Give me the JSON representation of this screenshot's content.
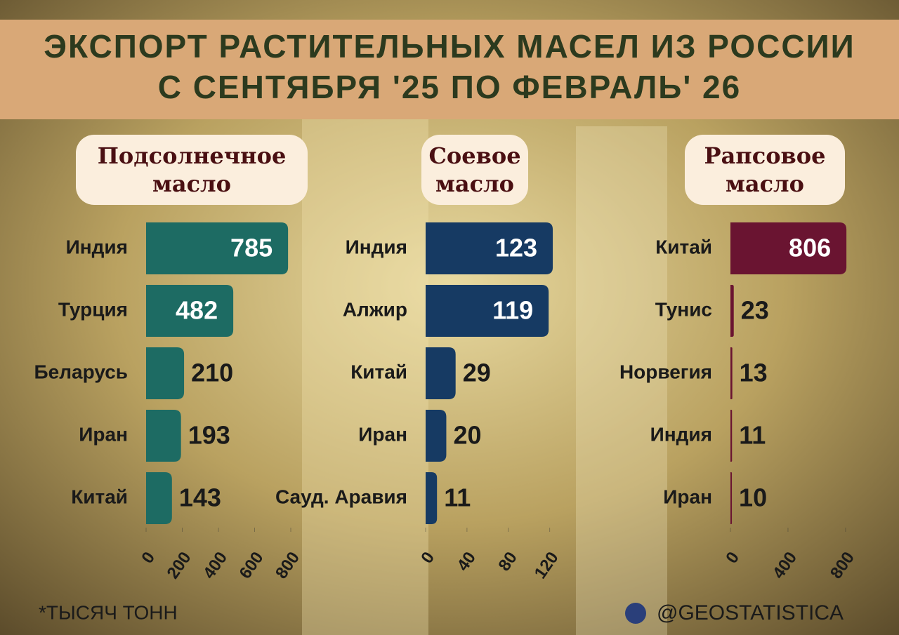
{
  "title": [
    "ЭКСПОРТ РАСТИТЕЛЬНЫХ МАСЕЛ ИЗ РОССИИ",
    "С СЕНТЯБРЯ '25 ПО ФЕВРАЛЬ' 26"
  ],
  "chart_data": [
    {
      "type": "bar",
      "orientation": "horizontal",
      "title": "Подсолнечное масло",
      "categories": [
        "Индия",
        "Турция",
        "Беларусь",
        "Иран",
        "Китай"
      ],
      "values": [
        785,
        482,
        210,
        193,
        143
      ],
      "color": "#1d6b63",
      "xlim": [
        0,
        800
      ],
      "xticks": [
        0,
        200,
        400,
        600,
        800
      ]
    },
    {
      "type": "bar",
      "orientation": "horizontal",
      "title": "Соевое масло",
      "categories": [
        "Индия",
        "Алжир",
        "Китай",
        "Иран",
        "Сауд. Аравия"
      ],
      "values": [
        123,
        119,
        29,
        20,
        11
      ],
      "color": "#163a63",
      "xlim": [
        0,
        125
      ],
      "xticks": [
        0,
        40,
        80,
        120
      ]
    },
    {
      "type": "bar",
      "orientation": "horizontal",
      "title": "Рапсовое масло",
      "categories": [
        "Китай",
        "Тунис",
        "Норвегия",
        "Индия",
        "Иран"
      ],
      "values": [
        806,
        23,
        13,
        11,
        10
      ],
      "color": "#6a1431",
      "xlim": [
        0,
        820
      ],
      "xticks": [
        0,
        400,
        800
      ]
    }
  ],
  "note": "*ТЫСЯЧ ТОНН",
  "source": "@GEOSTATISTICA"
}
